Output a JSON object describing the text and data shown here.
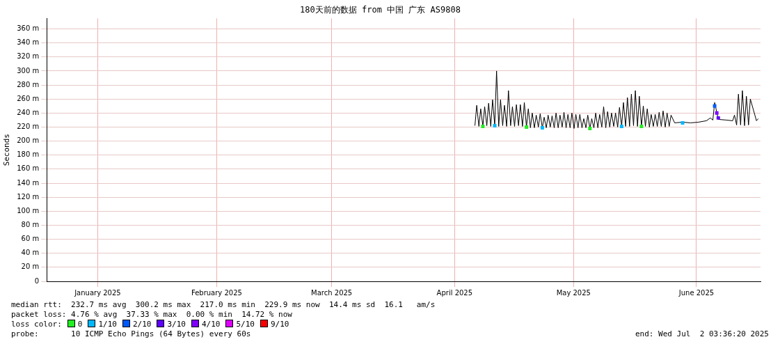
{
  "chart_data": {
    "type": "line",
    "title": "180天前的数据 from 中国 广东 AS9808",
    "ylabel": "Seconds",
    "xlim": [
      "2025-01-03T03:36",
      "2025-07-02T03:36"
    ],
    "xticks": [
      {
        "value": "2025-01-16",
        "label": "January 2025"
      },
      {
        "value": "2025-02-15",
        "label": "February 2025"
      },
      {
        "value": "2025-03-16",
        "label": "March 2025"
      },
      {
        "value": "2025-04-16",
        "label": "April 2025"
      },
      {
        "value": "2025-05-16",
        "label": "May 2025"
      },
      {
        "value": "2025-06-16",
        "label": "June 2025"
      }
    ],
    "ylim": [
      0,
      375
    ],
    "yticks": [
      {
        "value": 0,
        "label": "0"
      },
      {
        "value": 20,
        "label": "20 m"
      },
      {
        "value": 40,
        "label": "40 m"
      },
      {
        "value": 60,
        "label": "60 m"
      },
      {
        "value": 80,
        "label": "80 m"
      },
      {
        "value": 100,
        "label": "100 m"
      },
      {
        "value": 120,
        "label": "120 m"
      },
      {
        "value": 140,
        "label": "140 m"
      },
      {
        "value": 160,
        "label": "160 m"
      },
      {
        "value": 180,
        "label": "180 m"
      },
      {
        "value": 200,
        "label": "200 m"
      },
      {
        "value": 220,
        "label": "220 m"
      },
      {
        "value": 240,
        "label": "240 m"
      },
      {
        "value": 260,
        "label": "260 m"
      },
      {
        "value": 280,
        "label": "280 m"
      },
      {
        "value": 300,
        "label": "300 m"
      },
      {
        "value": 320,
        "label": "320 m"
      },
      {
        "value": 340,
        "label": "340 m"
      },
      {
        "value": 360,
        "label": "360 m"
      }
    ],
    "grid": true,
    "legend": "bottom",
    "legend_title": "loss color:",
    "series": [
      {
        "color": "#000000",
        "marker": "none",
        "x": [
          "2025-04-21T03:00",
          "2025-04-21T14:00",
          "2025-04-22T03:00",
          "2025-04-22T14:00",
          "2025-04-23T03:00",
          "2025-04-23T14:00",
          "2025-04-24T03:00",
          "2025-04-24T14:00",
          "2025-04-25T03:00",
          "2025-04-25T14:00",
          "2025-04-26T03:00",
          "2025-04-26T14:00",
          "2025-04-27T03:00",
          "2025-04-27T14:00",
          "2025-04-28T03:00",
          "2025-04-28T14:00",
          "2025-04-29T03:00",
          "2025-04-29T14:00",
          "2025-04-30T03:00",
          "2025-04-30T14:00",
          "2025-05-01T03:00",
          "2025-05-01T14:00",
          "2025-05-02T03:00",
          "2025-05-02T14:00",
          "2025-05-03T03:00",
          "2025-05-03T14:00",
          "2025-05-04T03:00",
          "2025-05-04T14:00",
          "2025-05-05T03:00",
          "2025-05-05T14:00",
          "2025-05-06T03:00",
          "2025-05-06T14:00",
          "2025-05-07T03:00",
          "2025-05-07T14:00",
          "2025-05-08T03:00",
          "2025-05-08T14:00",
          "2025-05-09T03:00",
          "2025-05-09T14:00",
          "2025-05-10T03:00",
          "2025-05-10T14:00",
          "2025-05-11T03:00",
          "2025-05-11T14:00",
          "2025-05-12T03:00",
          "2025-05-12T14:00",
          "2025-05-13T03:00",
          "2025-05-13T14:00",
          "2025-05-14T03:00",
          "2025-05-14T14:00",
          "2025-05-15T03:00",
          "2025-05-15T14:00",
          "2025-05-16T03:00",
          "2025-05-16T14:00",
          "2025-05-17T03:00",
          "2025-05-17T14:00",
          "2025-05-18T03:00",
          "2025-05-18T14:00",
          "2025-05-19T03:00",
          "2025-05-19T14:00",
          "2025-05-20T03:00",
          "2025-05-20T14:00",
          "2025-05-21T03:00",
          "2025-05-21T14:00",
          "2025-05-22T03:00",
          "2025-05-22T14:00",
          "2025-05-23T03:00",
          "2025-05-23T14:00",
          "2025-05-24T03:00",
          "2025-05-24T14:00",
          "2025-05-25T03:00",
          "2025-05-25T14:00",
          "2025-05-26T03:00",
          "2025-05-26T14:00",
          "2025-05-27T03:00",
          "2025-05-27T14:00",
          "2025-05-28T03:00",
          "2025-05-28T14:00",
          "2025-05-29T03:00",
          "2025-05-29T14:00",
          "2025-05-30T03:00",
          "2025-05-30T14:00",
          "2025-05-31T03:00",
          "2025-05-31T14:00",
          "2025-06-01T03:00",
          "2025-06-01T14:00",
          "2025-06-02T03:00",
          "2025-06-02T14:00",
          "2025-06-03T03:00",
          "2025-06-03T14:00",
          "2025-06-04T03:00",
          "2025-06-04T14:00",
          "2025-06-05T03:00",
          "2025-06-05T14:00",
          "2025-06-06T03:00",
          "2025-06-06T14:00",
          "2025-06-07T03:00",
          "2025-06-07T14:00",
          "2025-06-08T03:00",
          "2025-06-08T14:00",
          "2025-06-09T03:00",
          "2025-06-09T14:00",
          "2025-06-10T12:00",
          "2025-06-12T12:00",
          "2025-06-14T12:00",
          "2025-06-16T12:00",
          "2025-06-18T12:00",
          "2025-06-19T12:00",
          "2025-06-20T03:00",
          "2025-06-20T14:00",
          "2025-06-21T12:00",
          "2025-06-23T12:00",
          "2025-06-25T03:00",
          "2025-06-25T14:00",
          "2025-06-26T03:00",
          "2025-06-26T14:00",
          "2025-06-27T03:00",
          "2025-06-27T14:00",
          "2025-06-28T03:00",
          "2025-06-28T14:00",
          "2025-06-29T03:00",
          "2025-06-29T14:00",
          "2025-07-01T03:00",
          "2025-07-01T14:00"
        ],
        "values": [
          222,
          251,
          221,
          246,
          221,
          249,
          222,
          254,
          221,
          259,
          222,
          300,
          221,
          259,
          222,
          251,
          221,
          272,
          222,
          249,
          221,
          252,
          222,
          252,
          221,
          255,
          220,
          246,
          219,
          240,
          219,
          237,
          220,
          239,
          219,
          234,
          219,
          237,
          220,
          236,
          219,
          240,
          219,
          237,
          220,
          241,
          219,
          238,
          219,
          240,
          218,
          238,
          219,
          238,
          219,
          232,
          219,
          237,
          218,
          232,
          219,
          240,
          219,
          238,
          220,
          249,
          219,
          242,
          220,
          240,
          221,
          240,
          220,
          248,
          221,
          255,
          221,
          262,
          221,
          267,
          222,
          272,
          221,
          264,
          221,
          250,
          221,
          246,
          220,
          238,
          221,
          238,
          221,
          241,
          221,
          243,
          220,
          240,
          221,
          237,
          226,
          227,
          226,
          227,
          229,
          233,
          230,
          255,
          231,
          230,
          229,
          237,
          223,
          267,
          223,
          272,
          222,
          264,
          223,
          260,
          229,
          232
        ]
      },
      {
        "type": "scatter",
        "name": "0",
        "color": "#22ee22",
        "marker": "square",
        "x": [
          "2025-04-23T03:00",
          "2025-05-04T03:00",
          "2025-05-20T03:00",
          "2025-06-02T03:00"
        ],
        "values": [
          221,
          220,
          218,
          221
        ]
      },
      {
        "type": "scatter",
        "name": "1/10",
        "color": "#00b8ff",
        "marker": "square",
        "x": [
          "2025-04-26T03:00",
          "2025-05-08T03:00",
          "2025-05-28T03:00",
          "2025-06-12T12:00"
        ],
        "values": [
          222,
          219,
          221,
          226
        ]
      },
      {
        "type": "scatter",
        "name": "2/10",
        "color": "#0059ff",
        "marker": "square",
        "x": [
          "2025-06-20T14:00"
        ],
        "values": [
          250
        ]
      },
      {
        "type": "scatter",
        "name": "3/10",
        "color": "#5e00ff",
        "marker": "square",
        "x": [
          "2025-06-21T12:00"
        ],
        "values": [
          233
        ]
      },
      {
        "type": "scatter",
        "name": "4/10",
        "color": "#7e00ff",
        "marker": "square",
        "x": [
          "2025-06-21T03:00"
        ],
        "values": [
          240
        ]
      },
      {
        "type": "scatter",
        "name": "5/10",
        "color": "#dd00ff",
        "marker": "square"
      },
      {
        "type": "scatter",
        "name": "9/10",
        "color": "#ff0000",
        "marker": "square"
      }
    ],
    "annotations": [
      "median rtt:  232.7 ms avg  300.2 ms max  217.0 ms min  229.9 ms now  14.4 ms sd  16.1   am/s",
      "packet loss: 4.76 % avg  37.33 % max  0.00 % min  14.72 % now",
      "probe:       10 ICMP Echo Pings (64 Bytes) every 60s",
      "end: Wed Jul  2 03:36:20 2025"
    ]
  }
}
